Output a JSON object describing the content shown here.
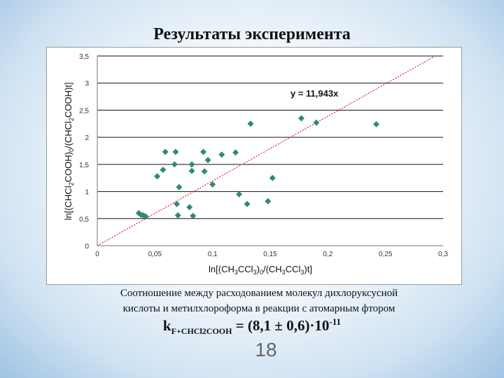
{
  "slide": {
    "title": "Результаты эксперимента",
    "caption_line1": "Соотношение между расходованием молекул дихлоруксусной",
    "caption_line2": "кислоты и метилхлороформа в реакции с атомарным фтором",
    "formula": {
      "k": "k",
      "subscript": "F+CHCl2COOH",
      "value": " = (8,1 ± 0,6)·10",
      "exponent": "-11"
    },
    "page_number": "18"
  },
  "chart_data": {
    "type": "scatter",
    "xlabel": "ln[(CH3CCl3)0/(CH3CCl3)t]",
    "ylabel": "ln[(CHCl2COOH)0/(CHCl2COOH)t]",
    "xlim": [
      0,
      0.3
    ],
    "ylim": [
      0,
      3.5
    ],
    "x_ticks": [
      "0",
      "0,05",
      "0,1",
      "0,15",
      "0,2",
      "0,25",
      "0,3"
    ],
    "y_ticks": [
      "0",
      "0,5",
      "1",
      "1,5",
      "2",
      "2,5",
      "3",
      "3,5"
    ],
    "grid": "horizontal",
    "marker_color": "#2e8b74",
    "trendline": {
      "equation": "y = 11,943x",
      "slope": 11.943,
      "color": "#e02020",
      "style": "dotted"
    },
    "points": [
      [
        0.036,
        0.6
      ],
      [
        0.038,
        0.57
      ],
      [
        0.04,
        0.56
      ],
      [
        0.042,
        0.54
      ],
      [
        0.052,
        1.28
      ],
      [
        0.057,
        1.4
      ],
      [
        0.059,
        1.73
      ],
      [
        0.067,
        1.5
      ],
      [
        0.068,
        1.73
      ],
      [
        0.069,
        0.77
      ],
      [
        0.07,
        0.56
      ],
      [
        0.071,
        1.08
      ],
      [
        0.08,
        0.71
      ],
      [
        0.082,
        1.5
      ],
      [
        0.082,
        1.38
      ],
      [
        0.083,
        0.55
      ],
      [
        0.092,
        1.73
      ],
      [
        0.093,
        1.37
      ],
      [
        0.096,
        1.58
      ],
      [
        0.1,
        1.13
      ],
      [
        0.108,
        1.68
      ],
      [
        0.12,
        1.72
      ],
      [
        0.123,
        0.95
      ],
      [
        0.13,
        0.77
      ],
      [
        0.133,
        2.25
      ],
      [
        0.148,
        0.82
      ],
      [
        0.152,
        1.25
      ],
      [
        0.177,
        2.35
      ],
      [
        0.19,
        2.27
      ],
      [
        0.242,
        2.24
      ]
    ]
  }
}
